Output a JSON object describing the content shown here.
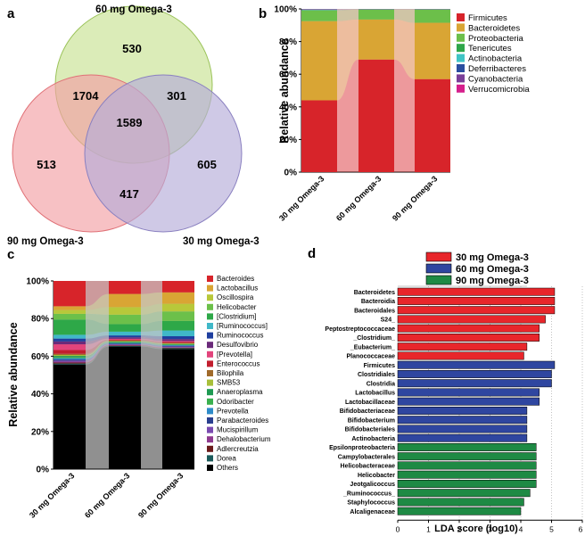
{
  "panels": {
    "a": "a",
    "b": "b",
    "c": "c",
    "d": "d"
  },
  "chart_data": [
    {
      "type": "venn",
      "panel": "a",
      "sets": [
        "60 mg Omega-3",
        "90 mg Omega-3",
        "30 mg Omega-3"
      ],
      "regions": {
        "only_60": 530,
        "only_90": 513,
        "only_30": 605,
        "60_90": 1704,
        "60_30": 301,
        "90_30": 417,
        "all": 1589
      },
      "colors": {
        "60 mg Omega-3": "#cfe6a0",
        "90 mg Omega-3": "#f2a0a4",
        "30 mg Omega-3": "#b5acd8"
      }
    },
    {
      "type": "stacked-bar",
      "panel": "b",
      "ylabel": "Relative abundance",
      "yticks": [
        "0%",
        "20%",
        "40%",
        "60%",
        "80%",
        "100%"
      ],
      "categories": [
        "30 mg Omega-3",
        "60 mg Omega-3",
        "90 mg Omega-3"
      ],
      "series": [
        {
          "name": "Firmicutes",
          "color": "#d7242a",
          "values": [
            44.0,
            69.0,
            57.0
          ]
        },
        {
          "name": "Bacteroidetes",
          "color": "#d9a534",
          "values": [
            48.5,
            24.5,
            34.5
          ]
        },
        {
          "name": "Proteobacteria",
          "color": "#6cbf4a",
          "values": [
            6.5,
            6.0,
            8.0
          ]
        },
        {
          "name": "Tenericutes",
          "color": "#2fa64a",
          "values": [
            0.3,
            0.2,
            0.2
          ]
        },
        {
          "name": "Actinobacteria",
          "color": "#40c4c4",
          "values": [
            0.3,
            0.1,
            0.1
          ]
        },
        {
          "name": "Deferribacteres",
          "color": "#2a4e9f",
          "values": [
            0.2,
            0.1,
            0.1
          ]
        },
        {
          "name": "Cyanobacteria",
          "color": "#7a3f98",
          "values": [
            0.1,
            0.05,
            0.05
          ]
        },
        {
          "name": "Verrucomicrobia",
          "color": "#d61f8c",
          "values": [
            0.1,
            0.05,
            0.05
          ]
        }
      ]
    },
    {
      "type": "stacked-bar",
      "panel": "c",
      "ylabel": "Relative abundance",
      "yticks": [
        "0%",
        "20%",
        "40%",
        "60%",
        "80%",
        "100%"
      ],
      "categories": [
        "30 mg Omega-3",
        "60 mg Omega-3",
        "90 mg Omega-3"
      ],
      "series": [
        {
          "name": "Others",
          "color": "#000000",
          "values": [
            55,
            65,
            63
          ]
        },
        {
          "name": "Dorea",
          "color": "#1a5a5a",
          "values": [
            0.5,
            0.3,
            0.4
          ]
        },
        {
          "name": "Adlercreutzia",
          "color": "#6a1a1a",
          "values": [
            0.5,
            0.3,
            0.3
          ]
        },
        {
          "name": "Dehalobacterium",
          "color": "#8e3a8e",
          "values": [
            0.5,
            0.3,
            0.3
          ]
        },
        {
          "name": "Mucispirillum",
          "color": "#7a4ab0",
          "values": [
            0.5,
            0.3,
            0.3
          ]
        },
        {
          "name": "Parabacteroides",
          "color": "#2a3f8f",
          "values": [
            0.6,
            0.4,
            0.4
          ]
        },
        {
          "name": "Prevotella",
          "color": "#2e8bc9",
          "values": [
            0.7,
            0.3,
            0.3
          ]
        },
        {
          "name": "Odoribacter",
          "color": "#3ab04e",
          "values": [
            0.6,
            0.4,
            0.3
          ]
        },
        {
          "name": "Anaeroplasma",
          "color": "#1f9a52",
          "values": [
            0.6,
            0.3,
            0.3
          ]
        },
        {
          "name": "SMB53",
          "color": "#a8bf3a",
          "values": [
            0.5,
            0.3,
            0.3
          ]
        },
        {
          "name": "Bilophila",
          "color": "#a06a2a",
          "values": [
            0.6,
            0.3,
            0.3
          ]
        },
        {
          "name": "Enterococcus",
          "color": "#c21e2e",
          "values": [
            2.0,
            0.4,
            0.5
          ]
        },
        {
          "name": "[Prevotella]",
          "color": "#e2447c",
          "values": [
            3.0,
            0.5,
            0.5
          ]
        },
        {
          "name": "Desulfovibrio",
          "color": "#6a2a7a",
          "values": [
            1.5,
            0.8,
            1.0
          ]
        },
        {
          "name": "Ruminococcus",
          "color": "#1f3f9f",
          "values": [
            1.5,
            1.0,
            1.5
          ]
        },
        {
          "name": "[Ruminococcus]",
          "color": "#40b8c8",
          "values": [
            2.0,
            2.0,
            3.0
          ]
        },
        {
          "name": "[Clostridium]",
          "color": "#2ea848",
          "values": [
            8.0,
            4.0,
            5.0
          ]
        },
        {
          "name": "Helicobacter",
          "color": "#6cc04a",
          "values": [
            3.0,
            5.0,
            5.0
          ]
        },
        {
          "name": "Oscillospira",
          "color": "#b8c83a",
          "values": [
            2.0,
            4.0,
            4.0
          ]
        },
        {
          "name": "Lactobacillus",
          "color": "#d9a534",
          "values": [
            2.0,
            7.0,
            6.0
          ]
        },
        {
          "name": "Bacteroides",
          "color": "#d7242a",
          "values": [
            13.3,
            6.9,
            6.0
          ]
        }
      ],
      "legend_order": [
        "Bacteroides",
        "Lactobacillus",
        "Oscillospira",
        "Helicobacter",
        "[Clostridium]",
        "[Ruminococcus]",
        "Ruminococcus",
        "Desulfovibrio",
        "[Prevotella]",
        "Enterococcus",
        "Bilophila",
        "SMB53",
        "Anaeroplasma",
        "Odoribacter",
        "Prevotella",
        "Parabacteroides",
        "Mucispirillum",
        "Dehalobacterium",
        "Adlercreutzia",
        "Dorea",
        "Others"
      ]
    },
    {
      "type": "bar",
      "orientation": "horizontal",
      "panel": "d",
      "xlabel": "LDA score  (log10)",
      "xticks": [
        "0",
        "1",
        "2",
        "3",
        "4",
        "5",
        "6"
      ],
      "xlim": [
        0,
        6
      ],
      "groups": [
        {
          "name": "30 mg Omega-3",
          "color": "#e8262b"
        },
        {
          "name": "60 mg Omega-3",
          "color": "#2f46a0"
        },
        {
          "name": "90 mg Omega-3",
          "color": "#1e8a44"
        }
      ],
      "taxa": [
        {
          "name": "Bacteroidetes",
          "group": 0,
          "value": 5.1
        },
        {
          "name": "Bacteroidia",
          "group": 0,
          "value": 5.1
        },
        {
          "name": "Bacteroidales",
          "group": 0,
          "value": 5.1
        },
        {
          "name": "S24_",
          "group": 0,
          "value": 4.8
        },
        {
          "name": "Peptostreptococcaceae",
          "group": 0,
          "value": 4.6
        },
        {
          "name": "_Clostridium_",
          "group": 0,
          "value": 4.6
        },
        {
          "name": "_Eubacterium_",
          "group": 0,
          "value": 4.2
        },
        {
          "name": "Planococcaceae",
          "group": 0,
          "value": 4.1
        },
        {
          "name": "Firmicutes",
          "group": 1,
          "value": 5.1
        },
        {
          "name": "Clostridiales",
          "group": 1,
          "value": 5.0
        },
        {
          "name": "Clostridia",
          "group": 1,
          "value": 5.0
        },
        {
          "name": "Lactobacillus",
          "group": 1,
          "value": 4.6
        },
        {
          "name": "Lactobacillaceae",
          "group": 1,
          "value": 4.6
        },
        {
          "name": "Bifidobacteriaceae",
          "group": 1,
          "value": 4.2
        },
        {
          "name": "Bifidobacterium",
          "group": 1,
          "value": 4.2
        },
        {
          "name": "Bifidobacteriales",
          "group": 1,
          "value": 4.2
        },
        {
          "name": "Actinobacteria",
          "group": 1,
          "value": 4.2
        },
        {
          "name": "Epsilonproteobacteria",
          "group": 2,
          "value": 4.5
        },
        {
          "name": "Campylobacterales",
          "group": 2,
          "value": 4.5
        },
        {
          "name": "Helicobacteraceae",
          "group": 2,
          "value": 4.5
        },
        {
          "name": "Helicobacter",
          "group": 2,
          "value": 4.5
        },
        {
          "name": "Jeotgalicoccus",
          "group": 2,
          "value": 4.5
        },
        {
          "name": "_Ruminococcus_",
          "group": 2,
          "value": 4.3
        },
        {
          "name": "Staphylococcus",
          "group": 2,
          "value": 4.1
        },
        {
          "name": "Alcaligenaceae",
          "group": 2,
          "value": 4.0
        }
      ]
    }
  ]
}
